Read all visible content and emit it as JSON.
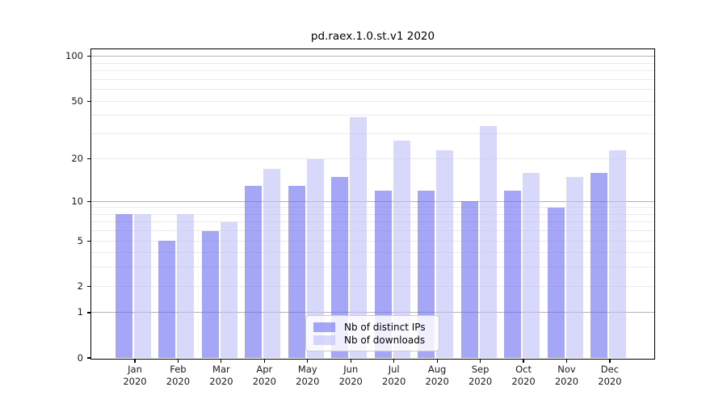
{
  "figure": {
    "title": "pd.raex.1.0.st.v1 2020"
  },
  "legend": {
    "items": [
      {
        "label": "Nb of distinct IPs"
      },
      {
        "label": "Nb of downloads"
      }
    ]
  },
  "colors": {
    "distinct_ips_bar": "rgba(107,107,242,0.6)",
    "downloads_bar": "rgba(190,190,247,0.6)",
    "distinct_ips_hex_over_white": "#a6a6f7",
    "downloads_hex_over_white": "#d8d8fa",
    "major_grid": "#b3b3b3",
    "minor_grid": "#ebebeb",
    "frame": "#000000",
    "text": "#1a1a1a"
  },
  "chart_data": {
    "type": "bar",
    "title": "pd.raex.1.0.st.v1 2020",
    "x_months": [
      "Jan",
      "Feb",
      "Mar",
      "Apr",
      "May",
      "Jun",
      "Jul",
      "Aug",
      "Sep",
      "Oct",
      "Nov",
      "Dec"
    ],
    "x_year": "2020",
    "categories": [
      "Jan 2020",
      "Feb 2020",
      "Mar 2020",
      "Apr 2020",
      "May 2020",
      "Jun 2020",
      "Jul 2020",
      "Aug 2020",
      "Sep 2020",
      "Oct 2020",
      "Nov 2020",
      "Dec 2020"
    ],
    "series": [
      {
        "name": "Nb of distinct IPs",
        "values": [
          8,
          5,
          6,
          13,
          13,
          15,
          12,
          12,
          10,
          12,
          9,
          16
        ]
      },
      {
        "name": "Nb of downloads",
        "values": [
          8,
          8,
          7,
          17,
          20,
          39,
          27,
          23,
          34,
          16,
          15,
          23
        ]
      }
    ],
    "xlabel": "",
    "ylabel": "",
    "yscale": "symlog (position proportional to ln(1+v))",
    "ylim": [
      0,
      112
    ],
    "y_ticks": [
      100,
      50,
      20,
      10,
      5,
      2,
      1,
      0
    ],
    "y_major_gridlines": [
      1,
      10,
      100
    ],
    "y_minor_gridlines": [
      2,
      3,
      4,
      5,
      6,
      7,
      8,
      9,
      20,
      30,
      40,
      50,
      60,
      70,
      80,
      90
    ],
    "grid": "horizontal only",
    "legend_position": "lower center inside plot"
  }
}
